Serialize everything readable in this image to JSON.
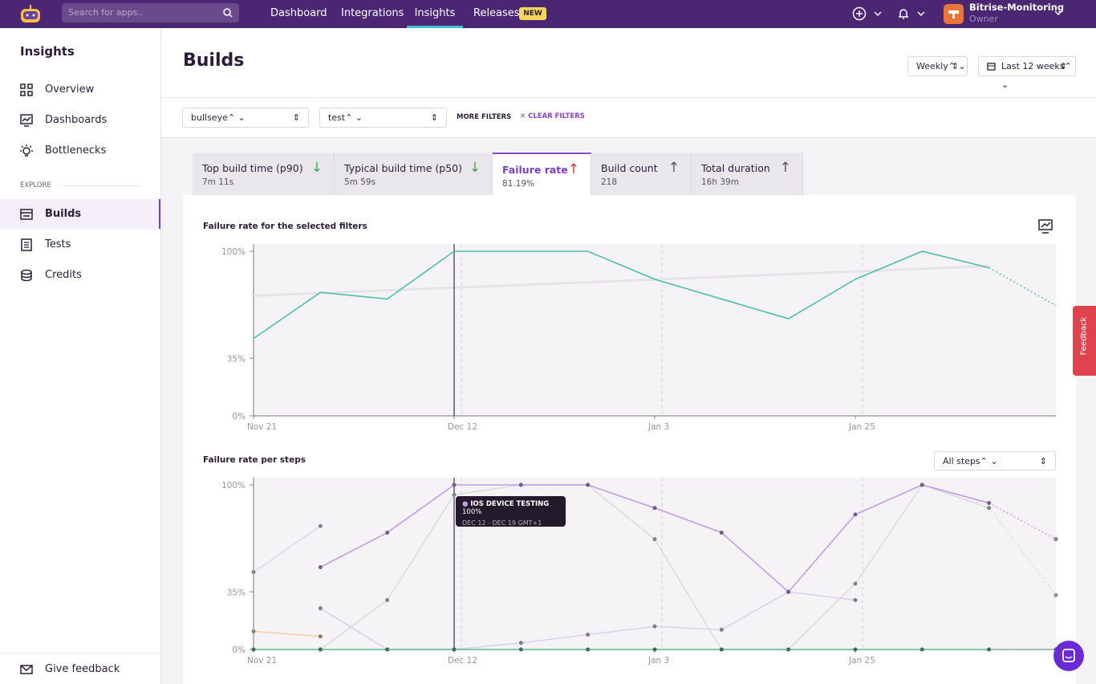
{
  "nav": {
    "search_placeholder": "Search for apps..",
    "items": [
      "Dashboard",
      "Integrations",
      "Insights",
      "Releases"
    ],
    "badge": "NEW",
    "org": "Bitrise-Monitoring",
    "role": "Owner"
  },
  "sidebar": {
    "title": "Insights",
    "items": [
      "Overview",
      "Dashboards",
      "Bottlenecks"
    ],
    "section": "EXPLORE",
    "explore": [
      "Builds",
      "Tests",
      "Credits"
    ],
    "footer": "Give feedback"
  },
  "header": {
    "title": "Builds",
    "interval": "Weekly",
    "range": "Last 12 weeks"
  },
  "filters": {
    "app": "bullseye",
    "workflow": "test",
    "more": "MORE FILTERS",
    "clear": "CLEAR FILTERS"
  },
  "tabs": [
    {
      "label": "Top build time (p90)",
      "value": "7m 11s",
      "trend": "down"
    },
    {
      "label": "Typical build time (p50)",
      "value": "5m 59s",
      "trend": "down"
    },
    {
      "label": "Failure rate",
      "value": "81.19%",
      "trend": "up"
    },
    {
      "label": "Build count",
      "value": "218",
      "trend": "up"
    },
    {
      "label": "Total duration",
      "value": "16h 39m",
      "trend": "up"
    }
  ],
  "feedback_tab": "Feedback",
  "chart_data": [
    {
      "type": "line",
      "title": "Failure rate for the selected filters",
      "categories": [
        "Nov 21",
        null,
        null,
        "Dec 12",
        null,
        null,
        "Jan 3",
        null,
        null,
        "Jan 25",
        null,
        null,
        null
      ],
      "ylim": [
        0,
        100
      ],
      "yticks": [
        {
          "value": 0,
          "label": "0%"
        },
        {
          "value": 35,
          "label": "35%"
        },
        {
          "value": 100,
          "label": "100%"
        }
      ],
      "series": [
        {
          "color": "#4dbfa6",
          "values": [
            47,
            75,
            71,
            100,
            100,
            100,
            83,
            71,
            59,
            83,
            100,
            90,
            67
          ]
        }
      ],
      "trend": [
        73,
        91
      ],
      "hover_index": 3,
      "dotted_last": true,
      "markers": false
    },
    {
      "type": "line",
      "title": "Failure rate per steps",
      "selector": "All steps",
      "categories": [
        "Nov 21",
        null,
        null,
        "Dec 12",
        null,
        null,
        "Jan 3",
        null,
        null,
        "Jan 25",
        null,
        null,
        null
      ],
      "ylim": [
        0,
        100
      ],
      "yticks": [
        {
          "value": 0,
          "label": "0%"
        },
        {
          "value": 35,
          "label": "35%"
        },
        {
          "value": 100,
          "label": "100%"
        }
      ],
      "series": [
        {
          "color": "#d6dcda",
          "values": [
            null,
            0,
            30,
            94,
            100,
            100,
            67,
            0,
            0,
            40,
            100,
            86,
            33
          ]
        },
        {
          "color": "#d9cdea",
          "values": [
            null,
            25,
            0,
            0,
            4,
            9,
            14,
            12,
            35,
            30,
            null,
            null,
            null
          ]
        },
        {
          "color": "#c9e0ee",
          "values": [
            47,
            75,
            null,
            null,
            null,
            null,
            null,
            null,
            null,
            null,
            null,
            null,
            null
          ]
        },
        {
          "color": "#f7c89a",
          "values": [
            11,
            8,
            null,
            null,
            null,
            null,
            null,
            null,
            null,
            null,
            null,
            null,
            null
          ]
        },
        {
          "color": "#5fb98b",
          "values": [
            0,
            0,
            0,
            0,
            0,
            0,
            0,
            0,
            0,
            0,
            0,
            0,
            0
          ]
        },
        {
          "name": "IOS DEVICE TESTING",
          "color": "#c39be6",
          "values": [
            null,
            50,
            71,
            100,
            100,
            100,
            86,
            71,
            35,
            82,
            100,
            89,
            67
          ]
        }
      ],
      "hover_index": 3,
      "dotted_last": true,
      "markers": true,
      "tooltip": {
        "series": "IOS DEVICE TESTING",
        "value": "100%",
        "period": "DEC 12 - DEC 19 GMT+1"
      }
    }
  ]
}
